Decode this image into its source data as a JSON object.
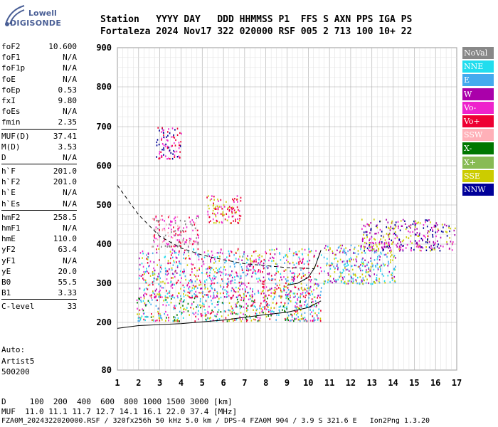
{
  "logo": {
    "line1": "Lowell",
    "line2": "DIGISONDE"
  },
  "header": {
    "line1": "Station   YYYY DAY   DDD HHMMSS P1  FFS S AXN PPS IGA PS",
    "line2": "Fortaleza 2024 Nov17 322 020000 RSF 005 2 713 100 10+ 22"
  },
  "params": {
    "group1": [
      {
        "label": "foF2",
        "value": "10.600"
      },
      {
        "label": "foF1",
        "value": "N/A"
      },
      {
        "label": "foF1p",
        "value": "N/A"
      },
      {
        "label": "foE",
        "value": "N/A"
      },
      {
        "label": "foEp",
        "value": "0.53"
      },
      {
        "label": "fxI",
        "value": "9.80"
      },
      {
        "label": "foEs",
        "value": "N/A"
      },
      {
        "label": "fmin",
        "value": "2.35"
      }
    ],
    "group2": [
      {
        "label": "MUF(D)",
        "value": "37.41"
      },
      {
        "label": "M(D)",
        "value": "3.53"
      },
      {
        "label": "D",
        "value": "N/A"
      }
    ],
    "group3": [
      {
        "label": "h`F",
        "value": "201.0"
      },
      {
        "label": "h`F2",
        "value": "201.0"
      },
      {
        "label": "h`E",
        "value": "N/A"
      },
      {
        "label": "h`Es",
        "value": "N/A"
      }
    ],
    "group4": [
      {
        "label": "hmF2",
        "value": "258.5"
      },
      {
        "label": "hmF1",
        "value": "N/A"
      },
      {
        "label": "hmE",
        "value": "110.0"
      },
      {
        "label": "yF2",
        "value": "63.4"
      },
      {
        "label": "yF1",
        "value": "N/A"
      },
      {
        "label": "yE",
        "value": "20.0"
      },
      {
        "label": "B0",
        "value": "55.5"
      },
      {
        "label": "B1",
        "value": "3.33"
      }
    ],
    "group5": [
      {
        "label": "C-level",
        "value": "33"
      }
    ]
  },
  "auto": {
    "line1": "Auto:",
    "line2": "Artist5",
    "line3": "500200"
  },
  "legend": [
    {
      "label": "NoVal",
      "color": "#888888"
    },
    {
      "label": "NNE",
      "color": "#22ddee"
    },
    {
      "label": "E",
      "color": "#44aaee"
    },
    {
      "label": "W",
      "color": "#aa00aa"
    },
    {
      "label": "Vo-",
      "color": "#ee22cc"
    },
    {
      "label": "Vo+",
      "color": "#ee0033"
    },
    {
      "label": "SSW",
      "color": "#ffb0b8"
    },
    {
      "label": "X-",
      "color": "#007700"
    },
    {
      "label": "X+",
      "color": "#88bb55"
    },
    {
      "label": "SSE",
      "color": "#cccc00"
    },
    {
      "label": "NNW",
      "color": "#000099"
    }
  ],
  "footer": {
    "line1": "D     100  200  400  600  800 1000 1500 3000 [km]",
    "line2": "MUF  11.0 11.1 11.7 12.7 14.1 16.1 22.0 37.4 [MHz]",
    "line3": "FZA0M_2024322020000.RSF / 320fx256h 50 kHz 5.0 km / DPS-4 FZA0M 904 / 3.9 S 321.6 E   Ion2Png 1.3.20"
  },
  "chart_data": {
    "type": "scatter",
    "xlim": [
      1,
      17
    ],
    "ylim": [
      80,
      900
    ],
    "x_ticks": [
      1,
      2,
      3,
      4,
      5,
      6,
      7,
      8,
      9,
      10,
      11,
      12,
      13,
      14,
      15,
      16,
      17
    ],
    "y_ticks": [
      80,
      200,
      300,
      400,
      500,
      600,
      700,
      800,
      900
    ],
    "grid": true,
    "trace_dashed": [
      [
        1,
        550
      ],
      [
        2,
        475
      ],
      [
        3,
        420
      ],
      [
        4,
        390
      ],
      [
        5,
        372
      ],
      [
        6,
        360
      ],
      [
        7,
        350
      ],
      [
        8,
        345
      ],
      [
        9,
        340
      ],
      [
        10,
        338
      ],
      [
        10.3,
        337
      ]
    ],
    "trace_lower": [
      [
        1,
        185
      ],
      [
        2,
        192
      ],
      [
        4,
        197
      ],
      [
        6,
        206
      ],
      [
        8,
        220
      ],
      [
        9,
        226
      ],
      [
        10,
        238
      ],
      [
        10.6,
        255
      ]
    ],
    "trace_upper": [
      [
        9,
        295
      ],
      [
        9.5,
        300
      ],
      [
        10,
        315
      ],
      [
        10.3,
        340
      ],
      [
        10.6,
        385
      ]
    ],
    "echo_regions": [
      {
        "xmin": 1.9,
        "xmax": 10.6,
        "ymin": 205,
        "ymax": 265,
        "dir": [
          "Vo+",
          "Vo-",
          "SSE",
          "NNE",
          "E",
          "X-"
        ]
      },
      {
        "xmin": 2.0,
        "xmax": 10.6,
        "ymin": 265,
        "ymax": 390,
        "dir": [
          "E",
          "NNE",
          "Vo-",
          "W",
          "Vo+",
          "SSE"
        ]
      },
      {
        "xmin": 2.6,
        "xmax": 4.8,
        "ymin": 395,
        "ymax": 475,
        "dir": [
          "Vo+",
          "SSW",
          "Vo-",
          "NoVal"
        ]
      },
      {
        "xmin": 10.7,
        "xmax": 14.1,
        "ymin": 300,
        "ymax": 400,
        "dir": [
          "NNE",
          "E",
          "SSE",
          "W"
        ]
      },
      {
        "xmin": 12.5,
        "xmax": 16.9,
        "ymin": 385,
        "ymax": 465,
        "dir": [
          "W",
          "Vo-",
          "SSE",
          "NNW"
        ]
      },
      {
        "xmin": 2.8,
        "xmax": 4.0,
        "ymin": 620,
        "ymax": 700,
        "dir": [
          "Vo+",
          "Vo-",
          "NNW"
        ]
      },
      {
        "xmin": 5.2,
        "xmax": 6.8,
        "ymin": 455,
        "ymax": 525,
        "dir": [
          "Vo+",
          "SSE",
          "Vo-"
        ]
      }
    ]
  }
}
